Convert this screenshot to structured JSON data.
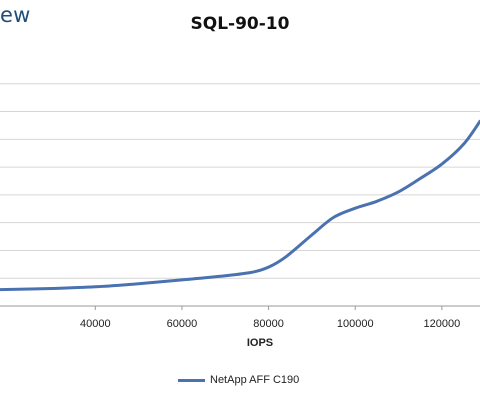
{
  "header": {
    "brand_fragment": "ew"
  },
  "chart_data": {
    "type": "line",
    "title": "SQL-90-10",
    "xlabel": "IOPS",
    "ylabel": "",
    "xlim": [
      18000,
      128800
    ],
    "ylim": [
      0,
      9
    ],
    "x_ticks": [
      40000,
      60000,
      80000,
      100000,
      120000
    ],
    "x_tick_labels": [
      "40000",
      "60000",
      "80000",
      "100000",
      "120000"
    ],
    "y_gridlines": [
      1,
      2,
      3,
      4,
      5,
      6,
      7,
      8
    ],
    "grid": "horizontal",
    "legend_position": "bottom",
    "colors": {
      "series": "#4a72b0",
      "grid": "#d6d6d6",
      "axis": "#9a9a9a"
    },
    "series": [
      {
        "name": "NetApp AFF C190",
        "x": [
          18000,
          30000,
          40000,
          50000,
          60000,
          70000,
          76000,
          80000,
          84000,
          90000,
          95000,
          100000,
          105000,
          110000,
          115000,
          120000,
          125000,
          128800
        ],
        "y": [
          0.59,
          0.63,
          0.69,
          0.8,
          0.94,
          1.09,
          1.21,
          1.4,
          1.77,
          2.56,
          3.19,
          3.52,
          3.77,
          4.11,
          4.59,
          5.11,
          5.82,
          6.65
        ]
      }
    ]
  }
}
